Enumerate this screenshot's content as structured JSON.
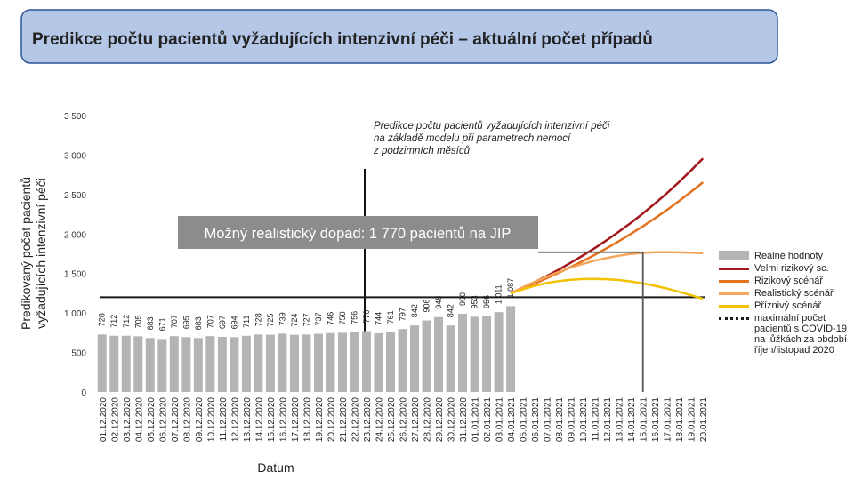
{
  "title": "Predikce počtu pacientů vyžadujících intenzivní péči – aktuální počet případů",
  "chart_data": {
    "type": "bar_line",
    "y_label": [
      "Predikovaný počet pacientů",
      "vyžadujících intenzivní péči"
    ],
    "x_label": "Datum",
    "annotation": [
      "Predikce počtu pacientů vyžadujících intenzivní péči",
      "na základě modelu při parametrech nemocí",
      "z podzimních měsíců"
    ],
    "callout": {
      "text": "Možný realistický dopad: 1 770 pacientů na JIP",
      "value": 1770,
      "date": "15.01.2021"
    },
    "categories": [
      "01.12.2020",
      "02.12.2020",
      "03.12.2020",
      "04.12.2020",
      "05.12.2020",
      "06.12.2020",
      "07.12.2020",
      "08.12.2020",
      "09.12.2020",
      "10.12.2020",
      "11.12.2020",
      "12.12.2020",
      "13.12.2020",
      "14.12.2020",
      "15.12.2020",
      "16.12.2020",
      "17.12.2020",
      "18.12.2020",
      "19.12.2020",
      "20.12.2020",
      "21.12.2020",
      "22.12.2020",
      "23.12.2020",
      "24.12.2020",
      "25.12.2020",
      "26.12.2020",
      "27.12.2020",
      "28.12.2020",
      "29.12.2020",
      "30.12.2020",
      "31.12.2020",
      "01.01.2021",
      "02.01.2021",
      "03.01.2021",
      "04.01.2021",
      "05.01.2021",
      "06.01.2021",
      "07.01.2021",
      "08.01.2021",
      "09.01.2021",
      "10.01.2021",
      "11.01.2021",
      "12.01.2021",
      "13.01.2021",
      "14.01.2021",
      "15.01.2021",
      "16.01.2021",
      "17.01.2021",
      "18.01.2021",
      "19.01.2021",
      "20.01.2021"
    ],
    "bars": {
      "name": "Reálné hodnoty",
      "color": "#b4b4b4",
      "values": [
        728,
        712,
        712,
        705,
        683,
        671,
        707,
        695,
        683,
        707,
        697,
        694,
        711,
        728,
        725,
        739,
        724,
        727,
        737,
        746,
        750,
        756,
        770,
        744,
        761,
        797,
        842,
        906,
        948,
        842,
        990,
        953,
        956,
        1011,
        1087,
        null,
        null,
        null,
        null,
        null,
        null,
        null,
        null,
        null,
        null,
        null,
        null,
        null,
        null,
        null,
        null
      ],
      "value_labels": [
        "728",
        "712",
        "712",
        "705",
        "683",
        "671",
        "707",
        "695",
        "683",
        "707",
        "697",
        "694",
        "711",
        "728",
        "725",
        "739",
        "724",
        "727",
        "737",
        "746",
        "750",
        "756",
        "770",
        "744",
        "761",
        "797",
        "842",
        "906",
        "948",
        "842",
        "990",
        "953",
        "956",
        "1 011",
        "1 087",
        null,
        null,
        null,
        null,
        null,
        null,
        null,
        null,
        null,
        null,
        null,
        null,
        null,
        null,
        null,
        null
      ]
    },
    "series": [
      {
        "name": "Velmi rizikový sc.",
        "color": "#a3181c",
        "values": [
          null,
          null,
          null,
          null,
          null,
          null,
          null,
          null,
          null,
          null,
          null,
          null,
          null,
          null,
          null,
          null,
          null,
          null,
          null,
          null,
          null,
          null,
          null,
          null,
          null,
          null,
          null,
          null,
          null,
          null,
          null,
          null,
          null,
          null,
          1250,
          1319,
          1392,
          1469,
          1550,
          1636,
          1727,
          1822,
          1923,
          2030,
          2142,
          2261,
          2386,
          2518,
          2657,
          2804,
          2958
        ]
      },
      {
        "name": "Rizikový scénář",
        "color": "#e4711e",
        "values": [
          null,
          null,
          null,
          null,
          null,
          null,
          null,
          null,
          null,
          null,
          null,
          null,
          null,
          null,
          null,
          null,
          null,
          null,
          null,
          null,
          null,
          null,
          null,
          null,
          null,
          null,
          null,
          null,
          null,
          null,
          null,
          null,
          null,
          null,
          1250,
          1310,
          1373,
          1440,
          1509,
          1582,
          1658,
          1738,
          1822,
          1910,
          2002,
          2098,
          2199,
          2305,
          2416,
          2533,
          2655
        ]
      },
      {
        "name": "Realistický scénář",
        "color": "#f4a65c",
        "values": [
          null,
          null,
          null,
          null,
          null,
          null,
          null,
          null,
          null,
          null,
          null,
          null,
          null,
          null,
          null,
          null,
          null,
          null,
          null,
          null,
          null,
          null,
          null,
          null,
          null,
          null,
          null,
          null,
          null,
          null,
          null,
          null,
          null,
          null,
          1250,
          1325,
          1395,
          1460,
          1520,
          1575,
          1622,
          1663,
          1697,
          1725,
          1748,
          1762,
          1769,
          1770,
          1768,
          1764,
          1758
        ]
      },
      {
        "name": "Příznivý scénář",
        "color": "#f2c200",
        "values": [
          null,
          null,
          null,
          null,
          null,
          null,
          null,
          null,
          null,
          null,
          null,
          null,
          null,
          null,
          null,
          null,
          null,
          null,
          null,
          null,
          null,
          null,
          null,
          null,
          null,
          null,
          null,
          null,
          null,
          null,
          null,
          null,
          null,
          null,
          1250,
          1300,
          1345,
          1380,
          1405,
          1420,
          1430,
          1432,
          1428,
          1418,
          1400,
          1375,
          1345,
          1310,
          1270,
          1225,
          1180
        ]
      }
    ],
    "reference_line": {
      "name": "maximální počet pacientů s COVID-19 na lůžkách za období říjen/listopad 2020",
      "value": 1200,
      "color": "#1a1a1a"
    },
    "ylim": [
      0,
      3500
    ],
    "yticks": [
      0,
      500,
      {
        "value": 1000,
        "label": "1 000"
      },
      {
        "value": 1500,
        "label": "1 500"
      },
      {
        "value": 2000,
        "label": "2 000"
      },
      {
        "value": 2500,
        "label": "2 500"
      },
      {
        "value": 3000,
        "label": "3 000"
      },
      {
        "value": 3500,
        "label": "3 500"
      }
    ]
  }
}
